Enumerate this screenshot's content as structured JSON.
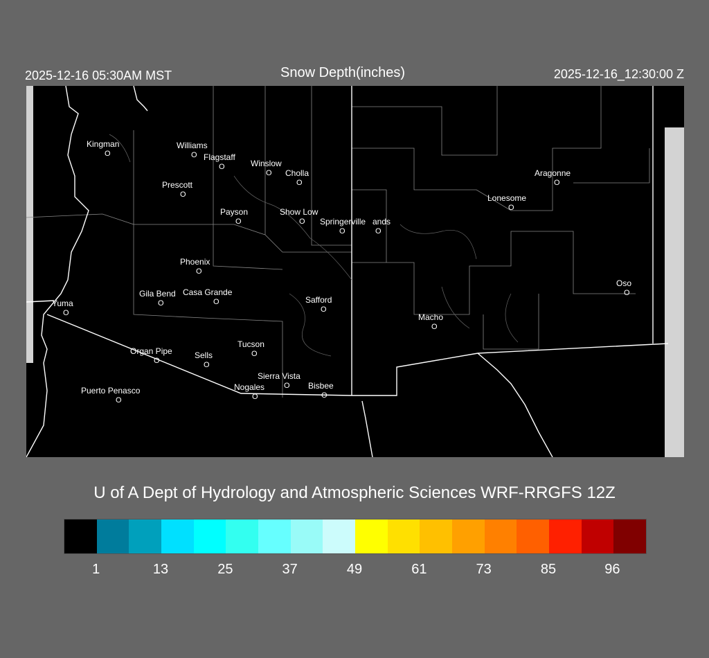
{
  "header": {
    "local_time": "2025-12-16 05:30AM MST",
    "title": "Snow Depth(inches)",
    "utc_time": "2025-12-16_12:30:00 Z"
  },
  "cities": [
    {
      "name": "Kingman"
    },
    {
      "name": "Williams"
    },
    {
      "name": "Flagstaff"
    },
    {
      "name": "Winslow"
    },
    {
      "name": "Cholla"
    },
    {
      "name": "Prescott"
    },
    {
      "name": "Payson"
    },
    {
      "name": "Show Low"
    },
    {
      "name": "Springerville"
    },
    {
      "name": "ands"
    },
    {
      "name": "Aragonne"
    },
    {
      "name": "Lonesome"
    },
    {
      "name": "Phoenix"
    },
    {
      "name": "Gila Bend"
    },
    {
      "name": "Casa Grande"
    },
    {
      "name": "Safford"
    },
    {
      "name": "Yuma"
    },
    {
      "name": "Oso"
    },
    {
      "name": "Macho"
    },
    {
      "name": "Tucson"
    },
    {
      "name": "Organ Pipe"
    },
    {
      "name": "Sells"
    },
    {
      "name": "Sierra Vista"
    },
    {
      "name": "Nogales"
    },
    {
      "name": "Bisbee"
    },
    {
      "name": "Puerto Penasco"
    }
  ],
  "marker_glyph": "O",
  "credit": "U of A Dept of Hydrology and Atmospheric Sciences WRF-RRGFS 12Z",
  "colorbar": {
    "colors": [
      "#000000",
      "#007c9c",
      "#00a0bc",
      "#00e0ff",
      "#00ffff",
      "#33fff0",
      "#66ffff",
      "#99fbf8",
      "#ccfcfc",
      "#ffff00",
      "#ffe000",
      "#ffc000",
      "#ffa000",
      "#ff8000",
      "#ff6000",
      "#ff2000",
      "#c00000",
      "#800000"
    ],
    "ticks": [
      "1",
      "13",
      "25",
      "37",
      "49",
      "61",
      "73",
      "85",
      "96"
    ]
  }
}
